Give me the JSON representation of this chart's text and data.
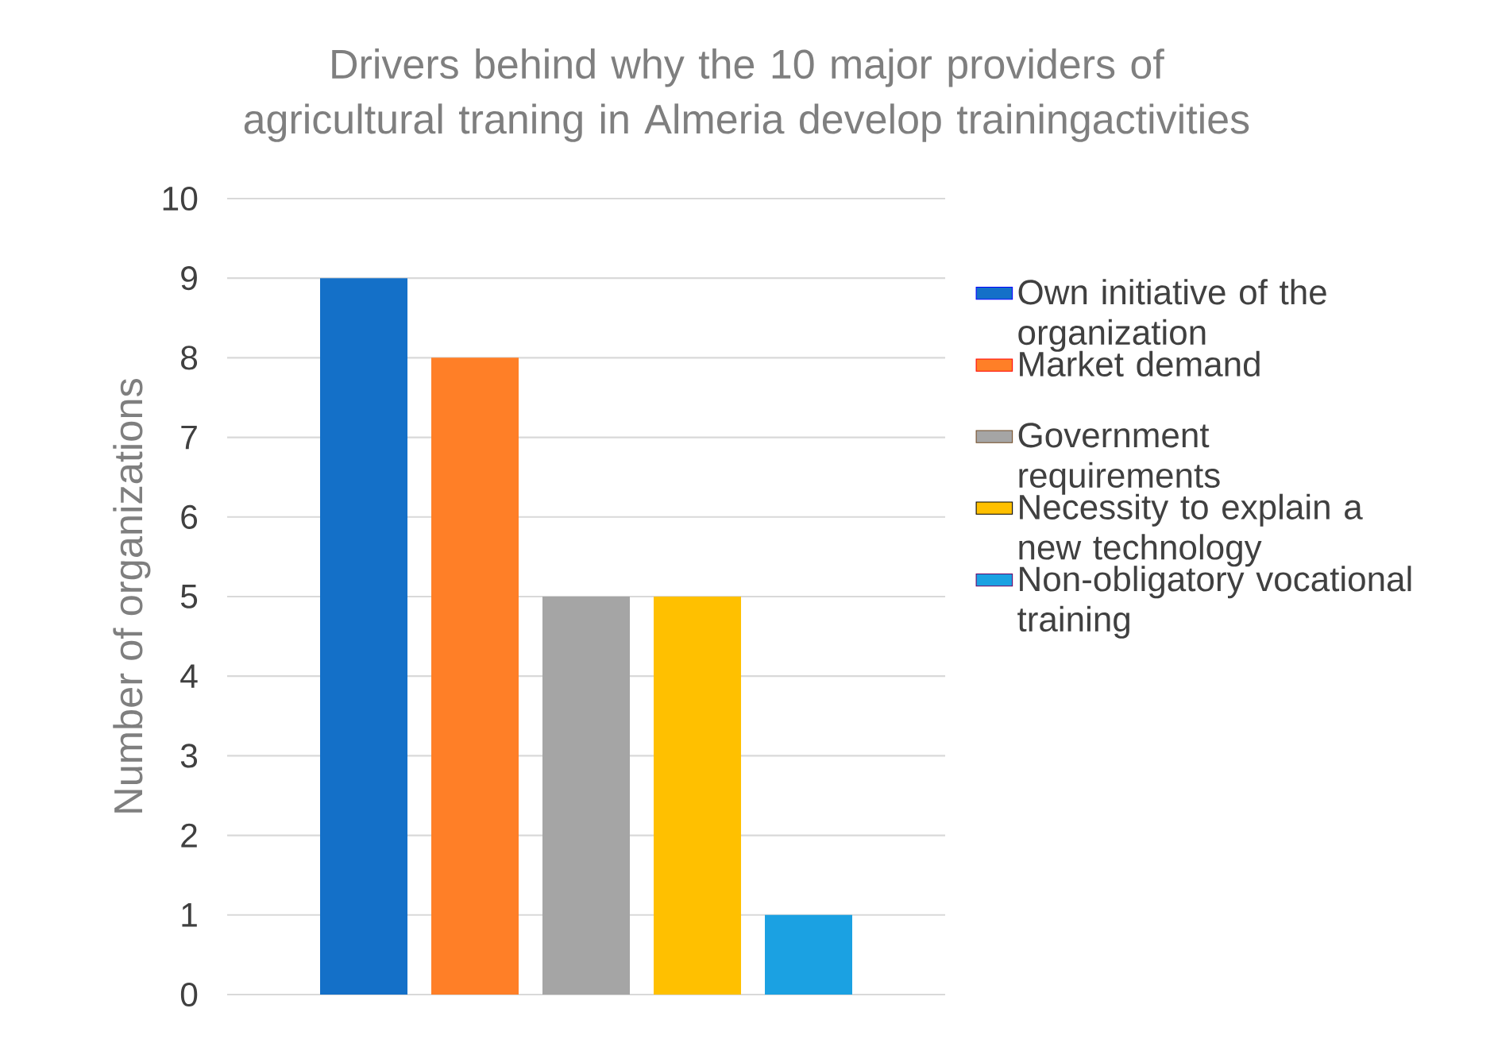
{
  "chart_data": {
    "type": "bar",
    "title": "Drivers behind why the 10 major providers of agricultural traning in Almeria develop trainingactivities",
    "ylabel": "Number of organizations",
    "categories": [
      null
    ],
    "series": [
      {
        "name": "Own initiative of the organization",
        "color": "#1470c8",
        "values": [
          9
        ]
      },
      {
        "name": "Market demand",
        "color": "#ff7f27",
        "values": [
          8
        ]
      },
      {
        "name": "Government requirements",
        "color": "#a5a5a5",
        "values": [
          5
        ]
      },
      {
        "name": "Necessity to explain a new technology",
        "color": "#ffc000",
        "values": [
          5
        ]
      },
      {
        "name": "Non-obligatory vocational training",
        "color": "#1ba1e2",
        "values": [
          1
        ]
      }
    ],
    "ylim": [
      0,
      10
    ],
    "yticks": [
      0,
      1,
      2,
      3,
      4,
      5,
      6,
      7,
      8,
      9,
      10
    ],
    "grid": "y",
    "legend": "right"
  }
}
